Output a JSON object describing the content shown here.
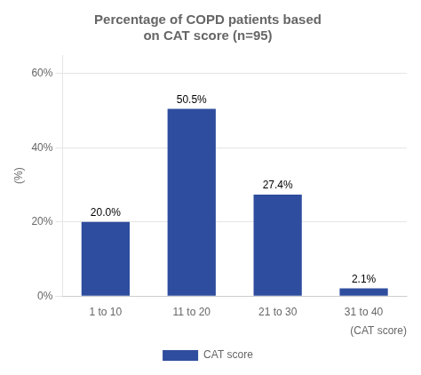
{
  "chart_data": {
    "type": "bar",
    "title": "Percentage of COPD patients based\non CAT score (n=95)",
    "categories": [
      "1 to 10",
      "11 to 20",
      "21 to 30",
      "31 to 40"
    ],
    "series": [
      {
        "name": "CAT score",
        "color": "#2E4D9E",
        "values": [
          20.0,
          50.5,
          27.4,
          2.1
        ],
        "value_labels": [
          "20.0%",
          "50.5%",
          "27.4%",
          "2.1%"
        ]
      }
    ],
    "data_labels": true,
    "xlabel": "(CAT score)",
    "ylabel": "(%)",
    "ylim": [
      0,
      65
    ],
    "yticks": [
      {
        "value": 0,
        "label": "0%"
      },
      {
        "value": 20,
        "label": "20%"
      },
      {
        "value": 40,
        "label": "40%"
      },
      {
        "value": 60,
        "label": "60%"
      }
    ],
    "grid": true,
    "legend": "bottom"
  }
}
